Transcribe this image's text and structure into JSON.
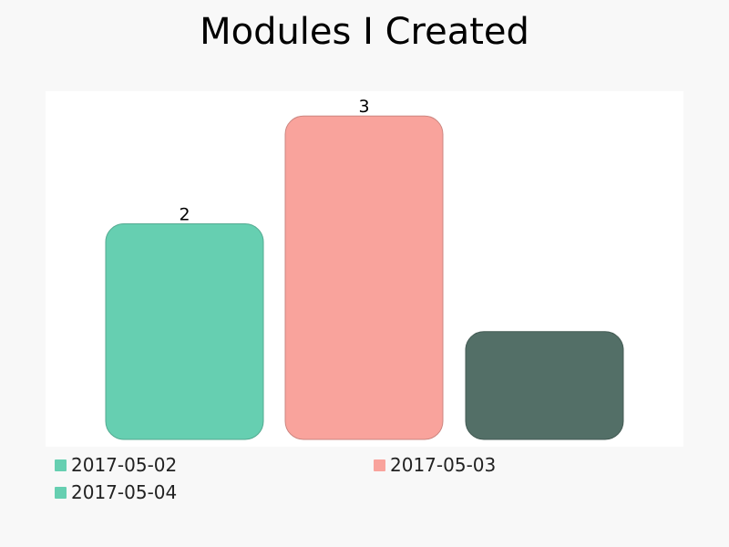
{
  "title": "Modules I Created",
  "chart_data": {
    "type": "bar",
    "title": "Modules I Created",
    "categories": [
      "2017-05-02",
      "2017-05-03",
      "2017-05-04"
    ],
    "values": [
      2,
      3,
      1
    ],
    "value_labels": [
      "2",
      "3",
      ""
    ],
    "colors": [
      "#66cfb1",
      "#f9a39c",
      "#536f67"
    ],
    "legend_colors": [
      "#66cfb1",
      "#f9a39c",
      "#66cfb1"
    ],
    "ylim": [
      0,
      3.23
    ],
    "xlabel": "",
    "ylabel": "",
    "grid": false,
    "legend": {
      "placement": "bottom",
      "entries": [
        "2017-05-02",
        "2017-05-03",
        "2017-05-04"
      ]
    }
  }
}
